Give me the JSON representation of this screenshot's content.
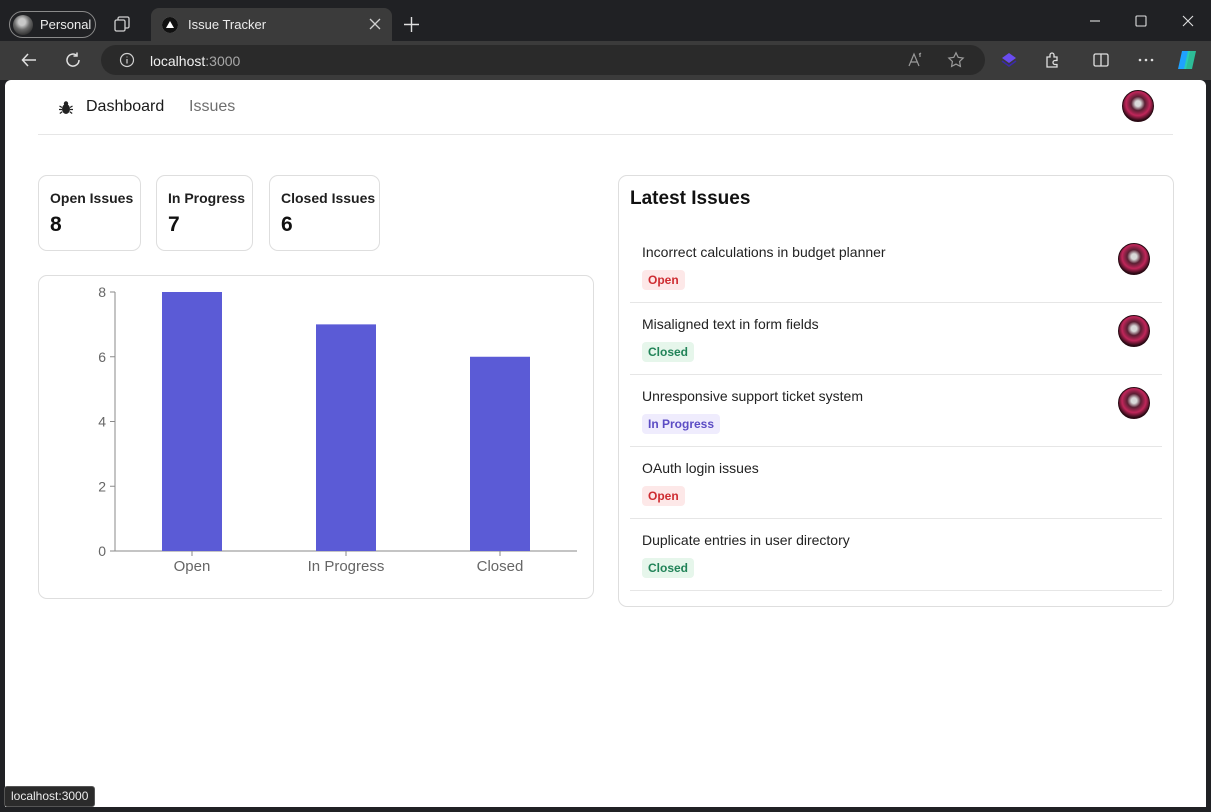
{
  "browser": {
    "profile_label": "Personal",
    "tab_title": "Issue Tracker",
    "url_host": "localhost",
    "url_port": ":3000",
    "status_text": "localhost:3000"
  },
  "nav": {
    "dashboard_label": "Dashboard",
    "issues_label": "Issues"
  },
  "summary": [
    {
      "label": "Open Issues",
      "value": "8"
    },
    {
      "label": "In Progress",
      "value": "7"
    },
    {
      "label": "Closed Issues",
      "value": "6"
    }
  ],
  "chart_data": {
    "type": "bar",
    "categories": [
      "Open",
      "In Progress",
      "Closed"
    ],
    "values": [
      8,
      7,
      6
    ],
    "ylim": [
      0,
      8
    ],
    "yticks": [
      0,
      2,
      4,
      6,
      8
    ],
    "bar_color": "#5b5bd6",
    "grid": false
  },
  "latest": {
    "title": "Latest Issues",
    "issues": [
      {
        "title": "Incorrect calculations in budget planner",
        "status": "Open",
        "assigned": true
      },
      {
        "title": "Misaligned text in form fields",
        "status": "Closed",
        "assigned": true
      },
      {
        "title": "Unresponsive support ticket system",
        "status": "In Progress",
        "assigned": true
      },
      {
        "title": "OAuth login issues",
        "status": "Open",
        "assigned": false
      },
      {
        "title": "Duplicate entries in user directory",
        "status": "Closed",
        "assigned": false
      }
    ]
  },
  "colors": {
    "accent": "#5b5bd6",
    "open": "#ce2c31",
    "closed": "#218358",
    "in_progress": "#5b4cc4"
  }
}
